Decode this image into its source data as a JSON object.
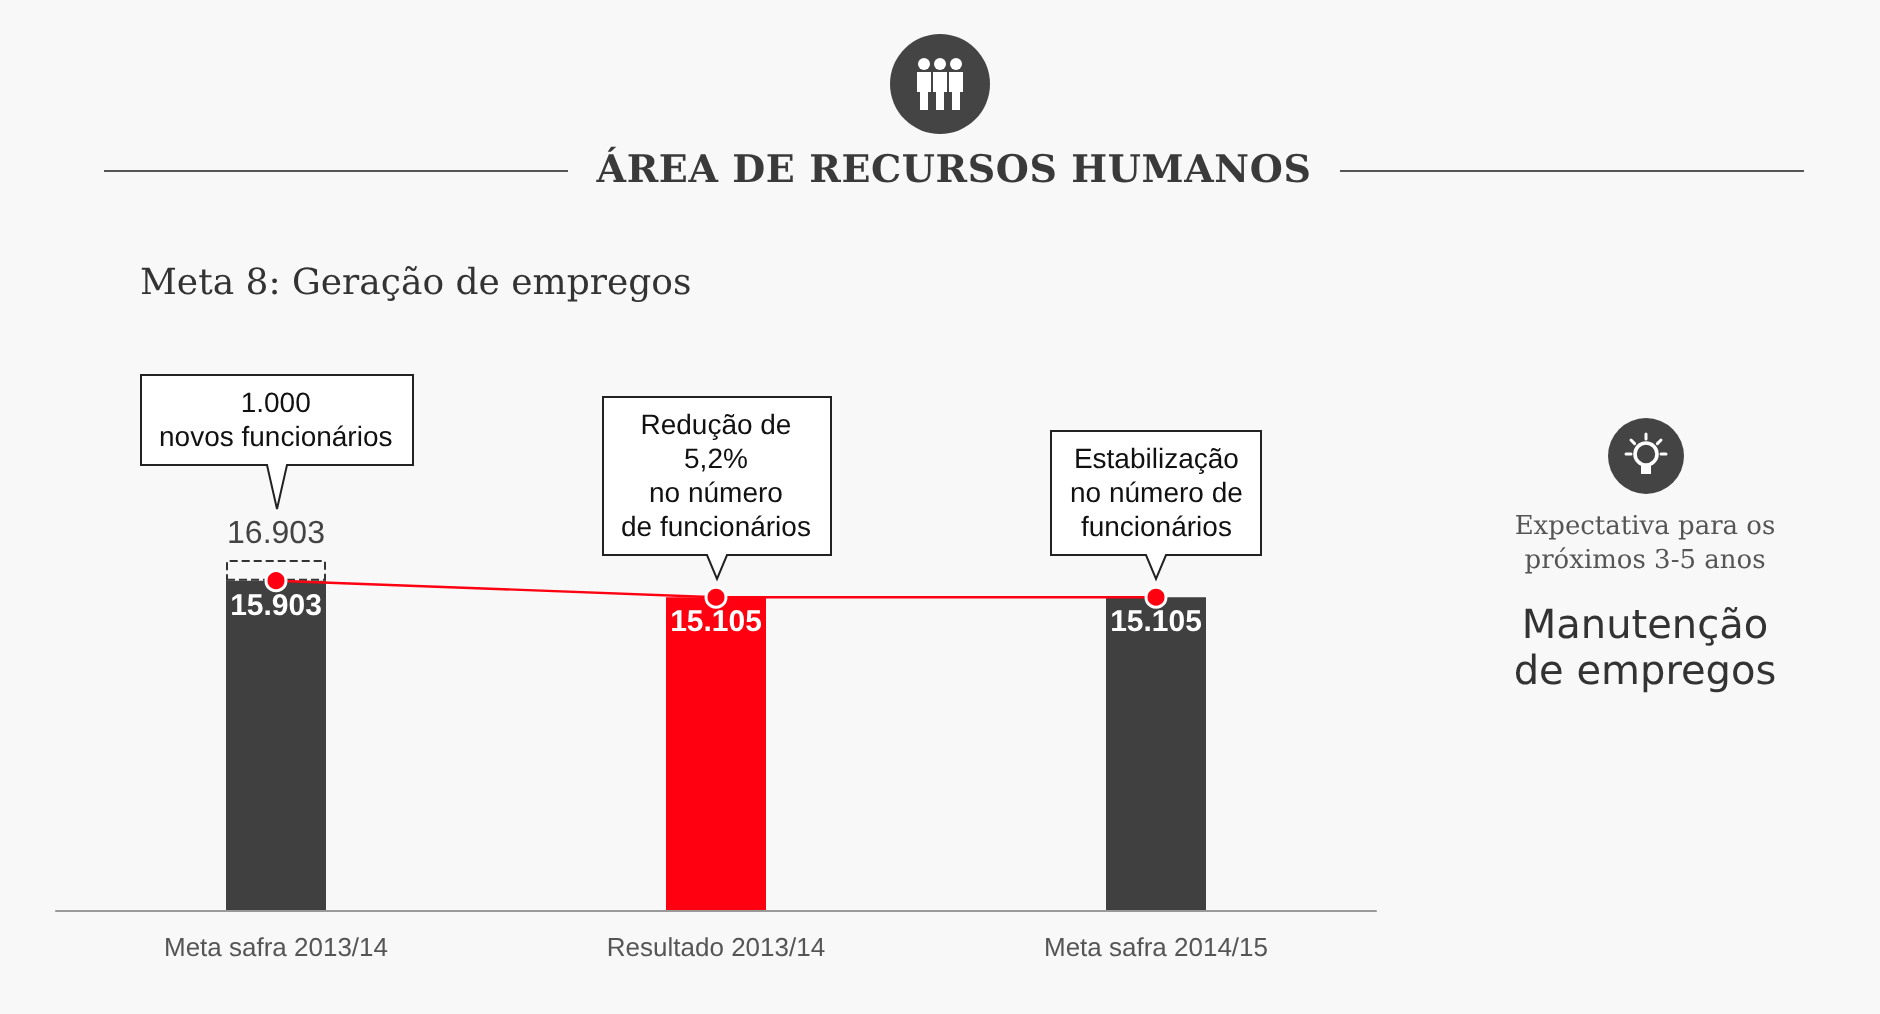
{
  "chart_data": {
    "type": "bar",
    "title": "ÁREA DE RECURSOS HUMANOS",
    "subtitle": "Meta 8: Geração de empregos",
    "categories": [
      "Meta safra 2013/14",
      "Resultado 2013/14",
      "Meta safra 2014/15"
    ],
    "series": [
      {
        "colors": [
          "#404040",
          "#ff0010",
          "#404040"
        ],
        "values": [
          15903,
          15105,
          15105
        ],
        "value_labels": [
          "15.903",
          "15.105",
          "15.105"
        ]
      },
      {
        "color": "#f8f8f8",
        "line_style": "dashed",
        "values": [
          1000,
          null,
          null
        ]
      },
      {
        "type": "line",
        "color": "#ff0010",
        "marker": "circle",
        "values": [
          15903,
          15105,
          15105
        ]
      }
    ],
    "stacked": true,
    "totals": [
      "16.903",
      null,
      null
    ],
    "tick_labels": "x",
    "annotations": [
      "1.000\nnovos funcionários",
      {
        "text": "Redução de\n5,2%\nno número\nde funcionários",
        "x": "Resultado 2013/14",
        "y": 15105
      },
      {
        "text": "Estabilização\nno número de\nfuncionários",
        "x": "Meta safra 2014/15",
        "y": 15105
      },
      "Expectativa para os próximos 3-5 anos",
      "Manutenção de empregos"
    ]
  }
}
